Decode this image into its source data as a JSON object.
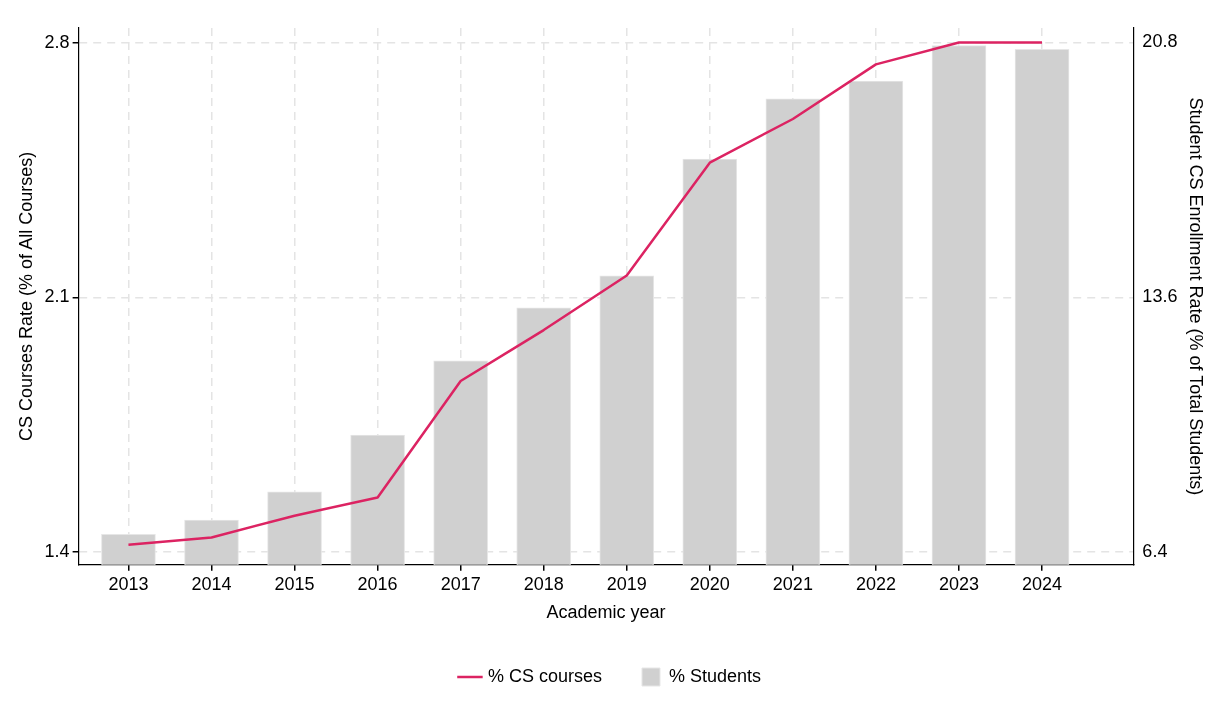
{
  "chart_data": {
    "type": "bar",
    "xlabel": "Academic year",
    "ylabel": "CS Courses Rate (% of All Courses)",
    "y2label": "Student CS Enrollment Rate (% of Total Students)",
    "x": [
      2013,
      2014,
      2015,
      2016,
      2017,
      2018,
      2019,
      2020,
      2021,
      2022,
      2023,
      2024
    ],
    "xlim": [
      2012.4,
      2025.1
    ],
    "xticks": [
      2013,
      2014,
      2015,
      2016,
      2017,
      2018,
      2019,
      2020,
      2021,
      2022,
      2023,
      2024
    ],
    "ylim": [
      1.365,
      2.84
    ],
    "yticks": [
      1.4,
      2.1,
      2.8
    ],
    "y2lim": [
      6.04,
      21.2
    ],
    "y2ticks": [
      6.4,
      13.6,
      20.8
    ],
    "series": [
      {
        "name": "% CS courses",
        "type": "line",
        "color": "#dc2362",
        "values": [
          1.42,
          1.44,
          1.5,
          1.55,
          1.87,
          2.01,
          2.16,
          2.47,
          2.59,
          2.74,
          2.8,
          2.8
        ]
      },
      {
        "name": "% Students",
        "axis": "y2",
        "color": "#d0d0d0",
        "values": [
          6.9,
          7.3,
          8.1,
          9.7,
          11.8,
          13.3,
          14.2,
          17.5,
          19.2,
          19.7,
          20.7,
          20.6
        ]
      }
    ],
    "grid": true,
    "legend": "bottom",
    "marker": "none",
    "line_style": "solid"
  }
}
